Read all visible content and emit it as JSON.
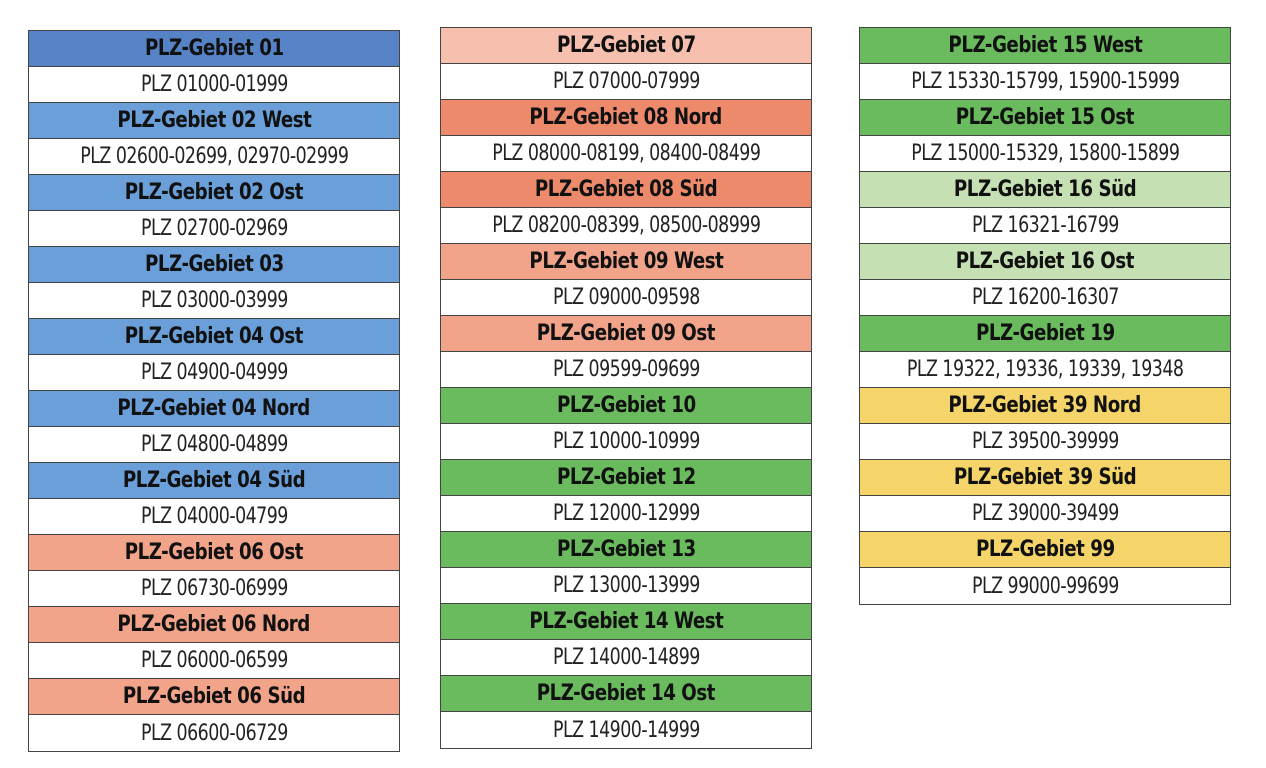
{
  "colors": {
    "blue": "#5b8fcf",
    "blue_light": "#6a9fd9",
    "salmon": "#f2a48a",
    "salmon_light": "#f6bcaa",
    "coral": "#ee8a6c",
    "green": "#6abb5e",
    "green_light": "#c5e1b4",
    "yellow": "#f5d46a"
  },
  "columns": [
    {
      "groups": [
        {
          "title": "PLZ-Gebiet 01",
          "range": "PLZ 01000-01999",
          "color": "#5583c6"
        },
        {
          "title": "PLZ-Gebiet 02 West",
          "range": "PLZ 02600-02699, 02970-02999",
          "color": "#6a9fd9"
        },
        {
          "title": "PLZ-Gebiet 02 Ost",
          "range": "PLZ 02700-02969",
          "color": "#6a9fd9"
        },
        {
          "title": "PLZ-Gebiet 03",
          "range": "PLZ 03000-03999",
          "color": "#6a9fd9"
        },
        {
          "title": "PLZ-Gebiet 04 Ost",
          "range": "PLZ 04900-04999",
          "color": "#6a9fd9"
        },
        {
          "title": "PLZ-Gebiet 04 Nord",
          "range": "PLZ 04800-04899",
          "color": "#6a9fd9"
        },
        {
          "title": "PLZ-Gebiet 04 Süd",
          "range": "PLZ 04000-04799",
          "color": "#6a9fd9"
        },
        {
          "title": "PLZ-Gebiet 06 Ost",
          "range": "PLZ 06730-06999",
          "color": "#f2a48a"
        },
        {
          "title": "PLZ-Gebiet 06 Nord",
          "range": "PLZ 06000-06599",
          "color": "#f2a48a"
        },
        {
          "title": "PLZ-Gebiet 06 Süd",
          "range": "PLZ 06600-06729",
          "color": "#f2a48a"
        }
      ]
    },
    {
      "groups": [
        {
          "title": "PLZ-Gebiet 07",
          "range": "PLZ 07000-07999",
          "color": "#f7c0ae"
        },
        {
          "title": "PLZ-Gebiet 08 Nord",
          "range": "PLZ 08000-08199, 08400-08499",
          "color": "#ee8a6c"
        },
        {
          "title": "PLZ-Gebiet 08 Süd",
          "range": "PLZ 08200-08399, 08500-08999",
          "color": "#ee8a6c"
        },
        {
          "title": "PLZ-Gebiet 09 West",
          "range": "PLZ 09000-09598",
          "color": "#f2a48a"
        },
        {
          "title": "PLZ-Gebiet 09 Ost",
          "range": "PLZ 09599-09699",
          "color": "#f2a48a"
        },
        {
          "title": "PLZ-Gebiet 10",
          "range": "PLZ 10000-10999",
          "color": "#6abb5e"
        },
        {
          "title": "PLZ-Gebiet 12",
          "range": "PLZ 12000-12999",
          "color": "#6abb5e"
        },
        {
          "title": "PLZ-Gebiet 13",
          "range": "PLZ 13000-13999",
          "color": "#6abb5e"
        },
        {
          "title": "PLZ-Gebiet 14 West",
          "range": "PLZ 14000-14899",
          "color": "#6abb5e"
        },
        {
          "title": "PLZ-Gebiet 14 Ost",
          "range": "PLZ 14900-14999",
          "color": "#6abb5e"
        }
      ]
    },
    {
      "groups": [
        {
          "title": "PLZ-Gebiet 15 West",
          "range": "PLZ 15330-15799, 15900-15999",
          "color": "#6abb5e"
        },
        {
          "title": "PLZ-Gebiet 15 Ost",
          "range": "PLZ 15000-15329, 15800-15899",
          "color": "#6abb5e"
        },
        {
          "title": "PLZ-Gebiet 16 Süd",
          "range": "PLZ 16321-16799",
          "color": "#c5e1b4"
        },
        {
          "title": "PLZ-Gebiet 16 Ost",
          "range": "PLZ 16200-16307",
          "color": "#c5e1b4"
        },
        {
          "title": "PLZ-Gebiet 19",
          "range": "PLZ 19322, 19336, 19339, 19348",
          "color": "#6abb5e"
        },
        {
          "title": "PLZ-Gebiet 39 Nord",
          "range": "PLZ 39500-39999",
          "color": "#f5d46a"
        },
        {
          "title": "PLZ-Gebiet 39 Süd",
          "range": "PLZ 39000-39499",
          "color": "#f5d46a"
        },
        {
          "title": "PLZ-Gebiet 99",
          "range": "PLZ 99000-99699",
          "color": "#f5d46a"
        }
      ]
    }
  ]
}
